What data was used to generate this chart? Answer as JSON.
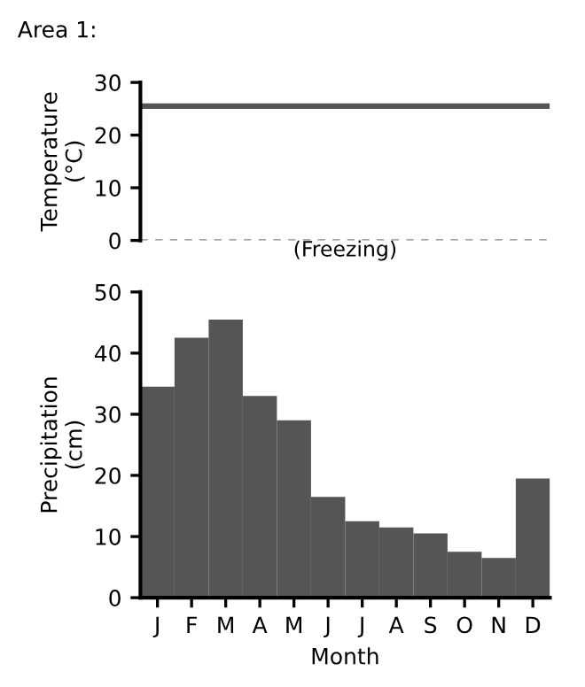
{
  "chart_data": [
    {
      "type": "step",
      "title": "Area 1:",
      "ylabel": "Temperature\n(°C)",
      "categories": [
        null,
        null,
        null,
        null,
        null,
        null,
        null,
        null,
        null,
        null,
        null,
        null
      ],
      "series": [
        {
          "color": "#555555",
          "values": [
            25.5,
            25.5,
            25.5,
            25.5,
            25.5,
            25.5,
            25.5,
            25.5,
            25.5,
            25.5,
            25.5,
            25.5
          ]
        }
      ],
      "ylim": [
        0,
        30
      ],
      "yticks": [
        0,
        10,
        20,
        30
      ],
      "tick_labels": "y",
      "ref_lines": [
        {
          "axis": "y",
          "value": 0,
          "label": "(Freezing)",
          "color": "#888888",
          "line_style": "dashed"
        }
      ]
    },
    {
      "type": "bar",
      "ylabel": "Precipitation\n(cm)",
      "xlabel": "Month",
      "categories": [
        "J",
        "F",
        "M",
        "A",
        "M",
        "J",
        "J",
        "A",
        "S",
        "O",
        "N",
        "D"
      ],
      "series": [
        {
          "color": "#555555",
          "values": [
            34.5,
            42.5,
            45.5,
            33,
            29,
            16.5,
            12.5,
            11.5,
            10.5,
            7.5,
            6.5,
            19.5
          ]
        }
      ],
      "ylim": [
        0,
        50
      ],
      "yticks": [
        0,
        10,
        20,
        30,
        40,
        50
      ]
    }
  ]
}
